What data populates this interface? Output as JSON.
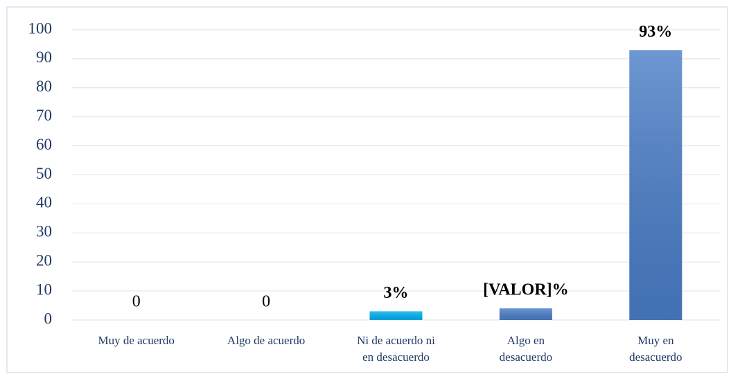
{
  "chart_data": {
    "type": "bar",
    "categories": [
      "Muy de acuerdo",
      "Algo de acuerdo",
      "Ni de acuerdo ni en desacuerdo",
      "Algo en desacuerdo",
      "Muy en desacuerdo"
    ],
    "values": [
      0,
      0,
      3,
      4,
      93
    ],
    "value_labels": [
      "0",
      "0",
      "3%",
      "[VALOR]%",
      "93%"
    ],
    "colors": [
      "#4a7ec8",
      "#4a7ec8",
      "#00b0f0",
      "#4a7ec8",
      "#4a7ec8"
    ],
    "ylim": [
      0,
      100
    ],
    "yticks": [
      0,
      10,
      20,
      30,
      40,
      50,
      60,
      70,
      80,
      90,
      100
    ],
    "grid": true
  }
}
